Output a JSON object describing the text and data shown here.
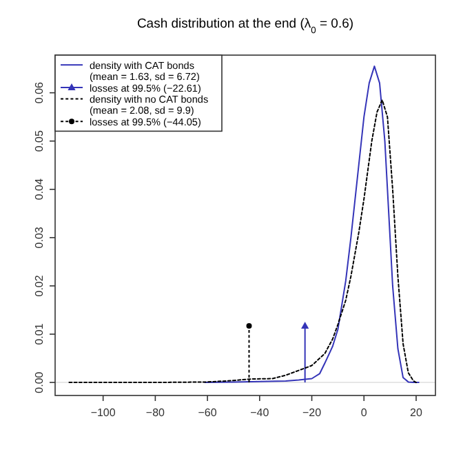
{
  "chart_data": {
    "type": "line",
    "title": "Cash distribution at the end (λ$_{0}$ = 0.6)",
    "xlim": [
      -118.4,
      27.4
    ],
    "ylim": [
      -0.0027,
      0.0678
    ],
    "xticks": [
      -100,
      -80,
      -60,
      -40,
      -20,
      0,
      20
    ],
    "yticks": [
      {
        "value": 0,
        "label": "0.00"
      },
      {
        "value": 0.01,
        "label": "0.01"
      },
      {
        "value": 0.02,
        "label": "0.02"
      },
      {
        "value": 0.03,
        "label": "0.03"
      },
      {
        "value": 0.04,
        "label": "0.04"
      },
      {
        "value": 0.05,
        "label": "0.05"
      },
      {
        "value": 0.06,
        "label": "0.06"
      }
    ],
    "grid": false,
    "legend": "top left",
    "ref_lines": [
      {
        "axis": "y",
        "value": 0,
        "color": "#e6e6e6"
      }
    ],
    "series": [
      {
        "name": "density with CAT bonds\n(mean = 1.63, sd = 6.72)",
        "color": "#3434b8",
        "line_style": "solid",
        "marker": "none",
        "x": [
          -61,
          -50,
          -40,
          -30,
          -25,
          -20,
          -17,
          -15,
          -12,
          -10,
          -7,
          -5,
          -2,
          0,
          2,
          4,
          6,
          8,
          9,
          10,
          11,
          13,
          15,
          17,
          19,
          21
        ],
        "values": [
          0,
          0.0001,
          0.0002,
          0.0003,
          0.0005,
          0.0008,
          0.0018,
          0.004,
          0.0075,
          0.011,
          0.021,
          0.03,
          0.045,
          0.055,
          0.062,
          0.0655,
          0.062,
          0.05,
          0.04,
          0.03,
          0.02,
          0.007,
          0.001,
          0.0001,
          0,
          0
        ]
      },
      {
        "name": "losses at 99.5% (−22.61)",
        "type": "lollipop",
        "color": "#3434b8",
        "line_style": "solid",
        "marker": "triangle",
        "x": [
          -22.61
        ],
        "values": [
          0.0117
        ]
      },
      {
        "name": "density with no CAT bonds\n(mean = 2.08, sd = 9.9)",
        "color": "#000000",
        "line_style": "dashed",
        "marker": "none",
        "x": [
          -113,
          -80,
          -60,
          -50,
          -44,
          -35,
          -30,
          -25,
          -20,
          -15,
          -12,
          -10,
          -7,
          -5,
          -2,
          0,
          3,
          5,
          7,
          9,
          11,
          13,
          15,
          17,
          19,
          20
        ],
        "values": [
          0,
          0,
          0.0001,
          0.0004,
          0.0007,
          0.0008,
          0.0015,
          0.0025,
          0.0035,
          0.006,
          0.009,
          0.012,
          0.017,
          0.022,
          0.031,
          0.038,
          0.05,
          0.056,
          0.0585,
          0.055,
          0.04,
          0.022,
          0.008,
          0.002,
          0.0003,
          0
        ]
      },
      {
        "name": "losses at 99.5% (−44.05)",
        "type": "lollipop",
        "color": "#000000",
        "line_style": "dashed",
        "marker": "circle",
        "x": [
          -44.05
        ],
        "values": [
          0.0117
        ]
      }
    ]
  }
}
